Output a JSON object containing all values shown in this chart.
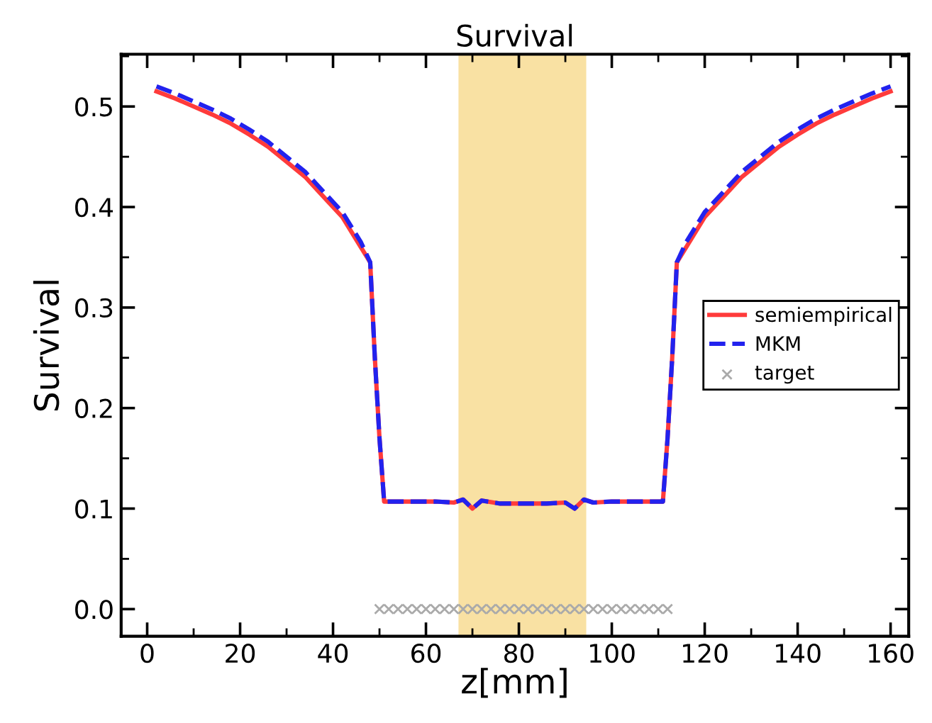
{
  "chart_data": {
    "type": "line",
    "title": "Survival",
    "xlabel": "z[mm]",
    "ylabel": "Survival",
    "xlim": [
      -5.6,
      163.9
    ],
    "ylim": [
      -0.027,
      0.552
    ],
    "xticks": [
      0,
      20,
      40,
      60,
      80,
      100,
      120,
      140,
      160
    ],
    "yticks": [
      {
        "value": 0,
        "label": "0.0"
      },
      0.1,
      0.2,
      0.3,
      0.4,
      0.5
    ],
    "grid": false,
    "legend": "right",
    "bands": [
      {
        "axis": "x",
        "from": 67,
        "to": 94.5,
        "color": "#f9e1a3"
      }
    ],
    "series": [
      {
        "name": "semiempirical",
        "color": "#ff3b3b",
        "line_style": "solid",
        "marker": "none",
        "x": [
          2,
          6,
          10,
          14,
          18,
          22,
          26,
          30,
          34,
          38,
          42,
          46,
          48,
          49,
          50,
          51,
          56,
          62,
          66,
          68,
          70,
          72,
          76,
          81,
          86,
          90,
          92,
          94,
          96,
          100,
          106,
          111,
          112,
          113,
          114,
          116,
          120,
          124,
          128,
          132,
          136,
          140,
          144,
          148,
          152,
          156,
          160
        ],
        "values": [
          0.515,
          0.508,
          0.5,
          0.492,
          0.483,
          0.472,
          0.46,
          0.445,
          0.43,
          0.41,
          0.39,
          0.36,
          0.345,
          0.25,
          0.17,
          0.107,
          0.107,
          0.107,
          0.106,
          0.109,
          0.1,
          0.108,
          0.105,
          0.105,
          0.105,
          0.106,
          0.1,
          0.109,
          0.106,
          0.107,
          0.107,
          0.107,
          0.17,
          0.25,
          0.345,
          0.36,
          0.39,
          0.41,
          0.43,
          0.445,
          0.46,
          0.472,
          0.483,
          0.492,
          0.5,
          0.508,
          0.515
        ]
      },
      {
        "name": "MKM",
        "color": "#2222ee",
        "line_style": "dashed",
        "marker": "none",
        "x": [
          2,
          6,
          10,
          14,
          18,
          22,
          26,
          30,
          34,
          38,
          42,
          46,
          48,
          49,
          50,
          51,
          56,
          62,
          66,
          68,
          70,
          72,
          76,
          81,
          86,
          90,
          92,
          94,
          96,
          100,
          106,
          111,
          112,
          113,
          114,
          116,
          120,
          124,
          128,
          132,
          136,
          140,
          144,
          148,
          152,
          156,
          160
        ],
        "values": [
          0.52,
          0.513,
          0.505,
          0.497,
          0.488,
          0.477,
          0.465,
          0.45,
          0.435,
          0.415,
          0.395,
          0.365,
          0.345,
          0.25,
          0.17,
          0.107,
          0.107,
          0.107,
          0.106,
          0.109,
          0.1,
          0.108,
          0.105,
          0.105,
          0.105,
          0.106,
          0.1,
          0.109,
          0.106,
          0.107,
          0.107,
          0.107,
          0.17,
          0.25,
          0.345,
          0.365,
          0.395,
          0.415,
          0.435,
          0.45,
          0.465,
          0.477,
          0.488,
          0.497,
          0.505,
          0.513,
          0.52
        ]
      },
      {
        "name": "target",
        "type": "scatter",
        "color": "#aaaaaa",
        "marker": "cross",
        "x": [
          50,
          52,
          54,
          56,
          58,
          60,
          62,
          64,
          66,
          68,
          70,
          72,
          74,
          76,
          78,
          80,
          82,
          84,
          86,
          88,
          90,
          92,
          94,
          96,
          98,
          100,
          102,
          104,
          106,
          108,
          110,
          112
        ],
        "values": [
          0,
          0,
          0,
          0,
          0,
          0,
          0,
          0,
          0,
          0,
          0,
          0,
          0,
          0,
          0,
          0,
          0,
          0,
          0,
          0,
          0,
          0,
          0,
          0,
          0,
          0,
          0,
          0,
          0,
          0,
          0,
          0
        ]
      }
    ]
  }
}
